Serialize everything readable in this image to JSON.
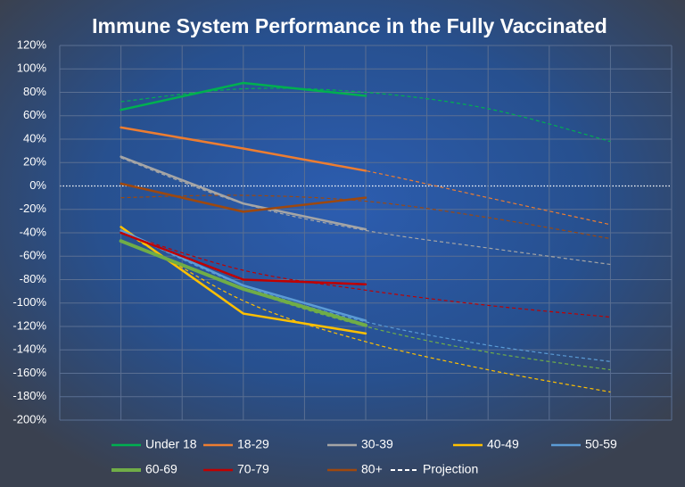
{
  "chart_data": {
    "type": "line",
    "title": "Immune System Performance in the Fully Vaccinated",
    "xlim": [
      0,
      10
    ],
    "xticks": [
      0,
      1,
      2,
      3,
      4,
      5,
      6,
      7,
      8,
      9,
      10
    ],
    "x": [
      1,
      3,
      5
    ],
    "projection_x": [
      1,
      3,
      5,
      7,
      9
    ],
    "projection_legend": "Projection",
    "projection_color": "#ffffff",
    "ylim": [
      -200,
      120
    ],
    "yticks": [
      {
        "value": -200,
        "label": "-200%"
      },
      {
        "value": -180,
        "label": "-180%"
      },
      {
        "value": -160,
        "label": "-160%"
      },
      {
        "value": -140,
        "label": "-140%"
      },
      {
        "value": -120,
        "label": "-120%"
      },
      {
        "value": -100,
        "label": "-100%"
      },
      {
        "value": -80,
        "label": "-80%"
      },
      {
        "value": -60,
        "label": "-60%"
      },
      {
        "value": -40,
        "label": "-40%"
      },
      {
        "value": -20,
        "label": "-20%"
      },
      {
        "value": 0,
        "label": "0%"
      },
      {
        "value": 20,
        "label": "20%"
      },
      {
        "value": 40,
        "label": "40%"
      },
      {
        "value": 60,
        "label": "60%"
      },
      {
        "value": 80,
        "label": "80%"
      },
      {
        "value": 100,
        "label": "100%"
      },
      {
        "value": 120,
        "label": "120%"
      }
    ],
    "grid": true,
    "legend": "bottom",
    "series": [
      {
        "name": "Under 18",
        "color": "#00b050",
        "values": [
          65,
          88,
          77
        ],
        "projection": [
          72,
          83,
          80,
          66,
          38
        ]
      },
      {
        "name": "18-29",
        "color": "#ed7d31",
        "values": [
          50,
          32,
          13
        ],
        "projection": [
          50,
          32,
          13,
          -10,
          -33
        ]
      },
      {
        "name": "30-39",
        "color": "#a5a5a5",
        "values": [
          25,
          -15,
          -37
        ],
        "projection": [
          24,
          -15,
          -38,
          -53,
          -67
        ]
      },
      {
        "name": "40-49",
        "color": "#ffc000",
        "values": [
          -35,
          -109,
          -126
        ],
        "projection": [
          -38,
          -98,
          -133,
          -157,
          -176
        ]
      },
      {
        "name": "50-59",
        "color": "#5b9bd5",
        "values": [
          -38,
          -85,
          -115
        ],
        "projection": [
          -38,
          -85,
          -116,
          -136,
          -150
        ]
      },
      {
        "name": "60-69",
        "color": "#70ad47",
        "values": [
          -47,
          -88,
          -119
        ],
        "projection": [
          -47,
          -88,
          -120,
          -142,
          -157
        ]
      },
      {
        "name": "70-79",
        "color": "#c00000",
        "values": [
          -40,
          -80,
          -84
        ],
        "projection": [
          -40,
          -72,
          -89,
          -102,
          -112
        ]
      },
      {
        "name": "80+",
        "color": "#9e480e",
        "values": [
          2,
          -22,
          -10
        ],
        "projection": [
          -10,
          -8,
          -13,
          -27,
          -45
        ]
      }
    ]
  }
}
